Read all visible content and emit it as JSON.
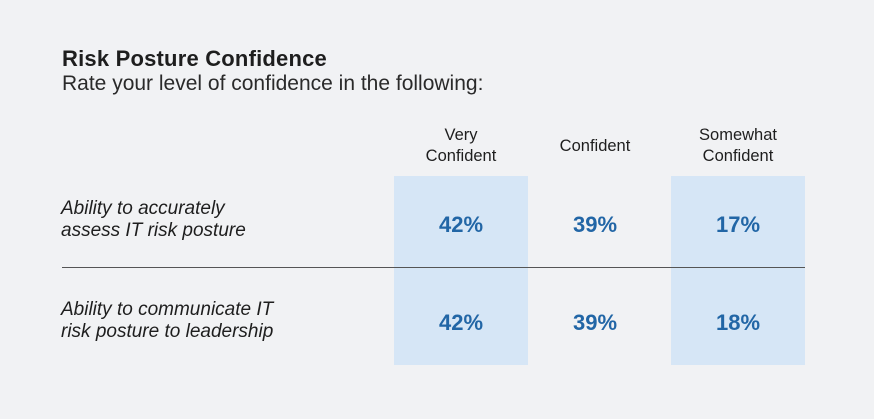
{
  "chart_data": {
    "type": "table",
    "title": "Risk Posture Confidence",
    "subtitle": "Rate your level of confidence in the following:",
    "columns": [
      "Very\nConfident",
      "Confident",
      "Somewhat\nConfident"
    ],
    "rows": [
      {
        "label": "Ability to accurately\nassess IT risk posture",
        "values": [
          "42%",
          "39%",
          "17%"
        ]
      },
      {
        "label": "Ability to communicate IT\nrisk posture to leadership",
        "values": [
          "42%",
          "39%",
          "18%"
        ]
      }
    ],
    "highlighted_columns": [
      0,
      2
    ]
  },
  "colors": {
    "background": "#f1f2f4",
    "highlight": "#d6e6f6",
    "value_text": "#2266a6",
    "divider": "#555555"
  }
}
